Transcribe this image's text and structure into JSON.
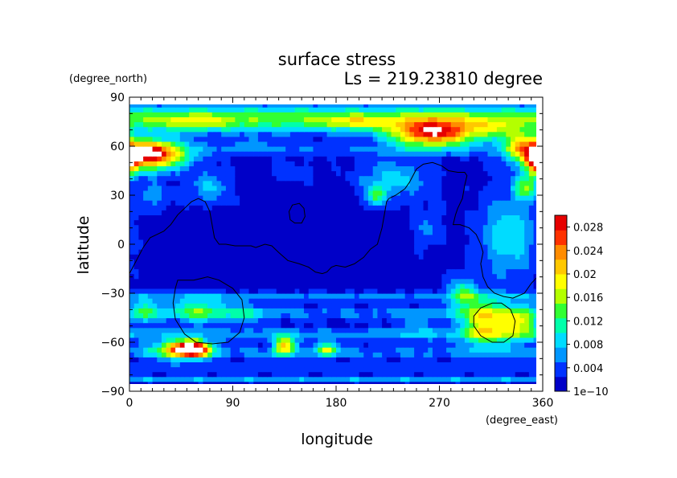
{
  "chart_data": {
    "type": "heatmap",
    "title": "surface stress",
    "subtitle": "Ls = 219.23810 degree",
    "xlabel": "longitude",
    "ylabel": "latitude",
    "x_unit": "(degree_east)",
    "y_unit": "(degree_north)",
    "xlim": [
      0,
      360
    ],
    "ylim": [
      -90,
      90
    ],
    "x_ticks": [
      0,
      90,
      180,
      270,
      360
    ],
    "y_ticks": [
      -90,
      -60,
      -30,
      0,
      30,
      60,
      90
    ],
    "x_tick_labels": [
      "0",
      "90",
      "180",
      "270",
      "360"
    ],
    "y_tick_labels": [
      "−90",
      "−60",
      "−30",
      "0",
      "30",
      "60",
      "90"
    ],
    "colorbar": {
      "min": 1e-10,
      "max": 0.03,
      "tick_values": [
        1e-10,
        0.004,
        0.008,
        0.012,
        0.016,
        0.02,
        0.024,
        0.028
      ],
      "tick_labels": [
        "1e−10",
        "0.004",
        "0.008",
        "0.012",
        "0.016",
        "0.02",
        "0.024",
        "0.028"
      ]
    },
    "colormap": [
      "#0000c8",
      "#0032ff",
      "#0096ff",
      "#00dcff",
      "#00ffaa",
      "#32ff32",
      "#b4ff00",
      "#ffff00",
      "#ffc800",
      "#ff8c00",
      "#ff3200",
      "#e60000",
      "#ffffff"
    ],
    "fields": {
      "background": 0.0015,
      "lat_bands": [
        {
          "lat": 77,
          "width": 8,
          "value": 0.013
        },
        {
          "lat": 58,
          "width": 4,
          "value": 0.003
        },
        {
          "lat": -32,
          "width": 3,
          "value": 0.004
        },
        {
          "lat": -42,
          "width": 4,
          "value": 0.004
        },
        {
          "lat": -55,
          "width": 4,
          "value": 0.005
        },
        {
          "lat": -66,
          "width": 4,
          "value": 0.004
        },
        {
          "lat": -75,
          "width": 2,
          "value": 0.003
        },
        {
          "lat": -82,
          "width": 2,
          "value": 0.006
        }
      ],
      "blobs": [
        {
          "lon": 15,
          "lat": 55,
          "rlon": 32,
          "rlat": 9,
          "value": 0.03
        },
        {
          "lon": 355,
          "lat": 52,
          "rlon": 10,
          "rlat": 10,
          "value": 0.02
        },
        {
          "lon": 265,
          "lat": 68,
          "rlon": 38,
          "rlat": 8,
          "value": 0.025
        },
        {
          "lon": 195,
          "lat": 75,
          "rlon": 25,
          "rlat": 4,
          "value": 0.006
        },
        {
          "lon": 60,
          "lat": 75,
          "rlon": 30,
          "rlat": 5,
          "value": 0.005
        },
        {
          "lon": 320,
          "lat": 70,
          "rlon": 20,
          "rlat": 6,
          "value": 0.006
        },
        {
          "lon": 340,
          "lat": 62,
          "rlon": 14,
          "rlat": 8,
          "value": 0.012
        },
        {
          "lon": 55,
          "lat": -64,
          "rlon": 16,
          "rlat": 5,
          "value": 0.028
        },
        {
          "lon": 40,
          "lat": -64,
          "rlon": 22,
          "rlat": 6,
          "value": 0.012
        },
        {
          "lon": 135,
          "lat": -62,
          "rlon": 9,
          "rlat": 6,
          "value": 0.018
        },
        {
          "lon": 172,
          "lat": -64,
          "rlon": 10,
          "rlat": 4,
          "value": 0.014
        },
        {
          "lon": 310,
          "lat": -48,
          "rlon": 20,
          "rlat": 14,
          "value": 0.017
        },
        {
          "lon": 340,
          "lat": -48,
          "rlon": 16,
          "rlat": 10,
          "value": 0.014
        },
        {
          "lon": 60,
          "lat": -40,
          "rlon": 22,
          "rlat": 8,
          "value": 0.01
        },
        {
          "lon": 15,
          "lat": -40,
          "rlon": 14,
          "rlat": 8,
          "value": 0.008
        },
        {
          "lon": 330,
          "lat": 5,
          "rlon": 25,
          "rlat": 25,
          "value": 0.008
        },
        {
          "lon": 345,
          "lat": 35,
          "rlon": 10,
          "rlat": 8,
          "value": 0.012
        },
        {
          "lon": 230,
          "lat": 40,
          "rlon": 30,
          "rlat": 12,
          "value": 0.007
        },
        {
          "lon": 215,
          "lat": 30,
          "rlon": 8,
          "rlat": 6,
          "value": 0.01
        },
        {
          "lon": 70,
          "lat": 35,
          "rlon": 18,
          "rlat": 10,
          "value": 0.006
        },
        {
          "lon": 20,
          "lat": 30,
          "rlon": 15,
          "rlat": 8,
          "value": 0.005
        },
        {
          "lon": 260,
          "lat": 10,
          "rlon": 12,
          "rlat": 12,
          "value": 0.004
        },
        {
          "lon": 290,
          "lat": -30,
          "rlon": 12,
          "rlat": 10,
          "value": 0.01
        },
        {
          "lon": 100,
          "lat": -42,
          "rlon": 20,
          "rlat": 6,
          "value": 0.006
        },
        {
          "lon": 250,
          "lat": -50,
          "rlon": 20,
          "rlat": 8,
          "value": 0.003
        },
        {
          "lon": 140,
          "lat": 45,
          "rlon": 20,
          "rlat": 6,
          "value": 0.003
        },
        {
          "lon": 110,
          "lat": 62,
          "rlon": 25,
          "rlat": 4,
          "value": 0.003
        }
      ]
    },
    "contours": [
      {
        "points": [
          [
            0,
            -18
          ],
          [
            6,
            -10
          ],
          [
            12,
            -2
          ],
          [
            18,
            4
          ],
          [
            24,
            6
          ],
          [
            30,
            8
          ],
          [
            36,
            12
          ],
          [
            42,
            18
          ],
          [
            48,
            22
          ],
          [
            54,
            26
          ],
          [
            60,
            28
          ],
          [
            66,
            26
          ],
          [
            70,
            20
          ],
          [
            72,
            12
          ],
          [
            74,
            4
          ],
          [
            78,
            0
          ],
          [
            84,
            0
          ],
          [
            92,
            -1
          ],
          [
            100,
            -1
          ],
          [
            106,
            -1
          ],
          [
            110,
            -2
          ],
          [
            118,
            0
          ],
          [
            124,
            -1
          ],
          [
            130,
            -5
          ],
          [
            138,
            -10
          ],
          [
            148,
            -12
          ],
          [
            156,
            -14
          ],
          [
            162,
            -17
          ],
          [
            168,
            -18
          ],
          [
            172,
            -17
          ],
          [
            176,
            -14
          ],
          [
            180,
            -13
          ],
          [
            188,
            -14
          ],
          [
            196,
            -12
          ],
          [
            204,
            -8
          ],
          [
            210,
            -3
          ],
          [
            216,
            0
          ],
          [
            220,
            10
          ],
          [
            222,
            18
          ],
          [
            224,
            26
          ],
          [
            226,
            28
          ],
          [
            232,
            30
          ],
          [
            240,
            34
          ],
          [
            244,
            38
          ],
          [
            250,
            46
          ],
          [
            256,
            49
          ],
          [
            264,
            50
          ],
          [
            272,
            48
          ],
          [
            278,
            45
          ],
          [
            286,
            44
          ],
          [
            292,
            44
          ],
          [
            294,
            42
          ],
          [
            292,
            36
          ],
          [
            290,
            28
          ],
          [
            286,
            22
          ],
          [
            284,
            18
          ],
          [
            282,
            12
          ],
          [
            288,
            12
          ],
          [
            296,
            10
          ],
          [
            302,
            6
          ],
          [
            306,
            0
          ],
          [
            308,
            -5
          ],
          [
            306,
            -12
          ],
          [
            308,
            -20
          ],
          [
            312,
            -26
          ],
          [
            318,
            -30
          ],
          [
            326,
            -32
          ],
          [
            334,
            -33
          ],
          [
            344,
            -30
          ],
          [
            350,
            -24
          ],
          [
            358,
            -18
          ],
          [
            360,
            -16
          ]
        ],
        "closed": false
      },
      {
        "points": [
          [
            142,
            24
          ],
          [
            148,
            25
          ],
          [
            152,
            22
          ],
          [
            153,
            17
          ],
          [
            150,
            13
          ],
          [
            144,
            13
          ],
          [
            140,
            15
          ],
          [
            139,
            20
          ]
        ],
        "closed": true
      },
      {
        "points": [
          [
            42,
            -22
          ],
          [
            56,
            -22
          ],
          [
            68,
            -20
          ],
          [
            78,
            -22
          ],
          [
            90,
            -27
          ],
          [
            98,
            -34
          ],
          [
            100,
            -45
          ],
          [
            96,
            -54
          ],
          [
            86,
            -60
          ],
          [
            72,
            -61
          ],
          [
            58,
            -60
          ],
          [
            48,
            -55
          ],
          [
            40,
            -46
          ],
          [
            38,
            -36
          ],
          [
            40,
            -27
          ]
        ],
        "closed": true
      },
      {
        "points": [
          [
            300,
            -44
          ],
          [
            306,
            -39
          ],
          [
            316,
            -36
          ],
          [
            324,
            -36
          ],
          [
            332,
            -40
          ],
          [
            336,
            -47
          ],
          [
            334,
            -56
          ],
          [
            326,
            -60
          ],
          [
            316,
            -60
          ],
          [
            306,
            -56
          ],
          [
            300,
            -50
          ]
        ],
        "closed": true
      }
    ]
  }
}
